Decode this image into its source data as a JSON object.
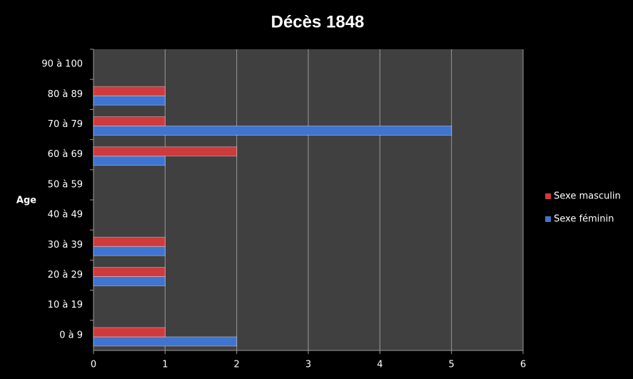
{
  "chart_data": {
    "type": "bar",
    "orientation": "horizontal",
    "title": "Décès 1848",
    "y_label": "Age",
    "categories": [
      "0 à 9",
      "10 à 19",
      "20 à 29",
      "30 à 39",
      "40 à 49",
      "50 à 59",
      "60 à 69",
      "70 à 79",
      "80 à 89",
      "90 à 100"
    ],
    "series": [
      {
        "name": "Sexe féminin",
        "color": "#3f74d0",
        "values": [
          2,
          0,
          1,
          1,
          0,
          0,
          1,
          5,
          1,
          0
        ]
      },
      {
        "name": "Sexe masculin",
        "color": "#d03a3c",
        "values": [
          1,
          0,
          1,
          1,
          0,
          0,
          2,
          1,
          1,
          0
        ]
      }
    ],
    "xlim": [
      0,
      6
    ],
    "xticks": [
      0,
      1,
      2,
      3,
      4,
      5,
      6
    ],
    "grid": true,
    "legend": "right"
  }
}
